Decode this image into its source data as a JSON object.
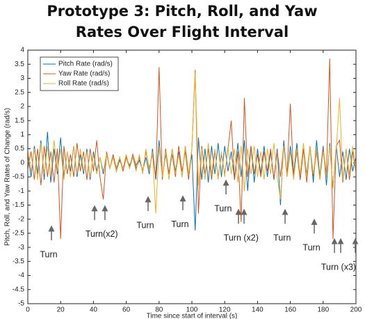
{
  "chart_data": {
    "type": "line",
    "title": [
      "Prototype 3: Pitch, Roll, and Yaw",
      "Rates Over Flight Interval"
    ],
    "xlabel": "Time since start of interval (s)",
    "ylabel": "Pitch, Roll, and Yaw Rates of Change (rad/s)",
    "xlim": [
      0,
      200
    ],
    "ylim": [
      -5,
      4
    ],
    "xticks": [
      0,
      20,
      40,
      60,
      80,
      100,
      120,
      140,
      160,
      180,
      200
    ],
    "yticks": [
      -5,
      -4.5,
      -4,
      -3.5,
      -3,
      -2.5,
      -2,
      -1.5,
      -1,
      -0.5,
      0,
      0.5,
      1,
      1.5,
      2,
      2.5,
      3,
      3.5,
      4
    ],
    "legend": "upper left",
    "x": [
      0,
      2,
      4,
      6,
      8,
      10,
      12,
      14,
      16,
      18,
      20,
      22,
      24,
      26,
      28,
      30,
      32,
      34,
      36,
      38,
      40,
      42,
      44,
      46,
      48,
      50,
      52,
      54,
      56,
      58,
      60,
      62,
      64,
      66,
      68,
      70,
      72,
      74,
      76,
      78,
      80,
      82,
      84,
      86,
      88,
      90,
      92,
      94,
      96,
      98,
      100,
      102,
      104,
      106,
      108,
      110,
      112,
      114,
      116,
      118,
      120,
      122,
      124,
      126,
      128,
      130,
      132,
      134,
      136,
      138,
      140,
      142,
      144,
      146,
      148,
      150,
      152,
      154,
      156,
      158,
      160,
      162,
      164,
      166,
      168,
      170,
      172,
      174,
      176,
      178,
      180,
      182,
      184,
      186,
      188,
      190,
      192,
      194,
      196,
      198,
      200
    ],
    "series": [
      {
        "name": "Pitch Rate (rad/s)",
        "color": "#0072bd",
        "values": [
          0.3,
          -0.5,
          0.6,
          -0.4,
          0.8,
          -0.6,
          1.1,
          -0.7,
          0.5,
          -0.4,
          0.9,
          -0.5,
          0.4,
          -0.3,
          0.6,
          -0.5,
          0.3,
          -0.4,
          0.5,
          -0.6,
          0.4,
          -0.3,
          0.2,
          -0.4,
          0.3,
          -0.2,
          0.2,
          -0.3,
          0.1,
          -0.2,
          0.2,
          -0.1,
          0.2,
          -0.2,
          0.1,
          -0.3,
          0.2,
          -0.4,
          0.5,
          -0.6,
          0.8,
          -0.5,
          0.3,
          -0.4,
          0.5,
          -0.3,
          0.4,
          -0.5,
          0.6,
          -0.4,
          0.3,
          -2.4,
          0.9,
          -0.6,
          0.5,
          -0.7,
          0.6,
          -0.4,
          0.7,
          -0.5,
          0.6,
          -0.3,
          0.4,
          -0.6,
          0.7,
          -0.5,
          0.8,
          -1.0,
          0.6,
          -0.7,
          0.5,
          -0.4,
          0.6,
          -0.5,
          0.4,
          -0.6,
          0.5,
          -1.5,
          0.8,
          -0.5,
          0.6,
          -0.4,
          0.7,
          -0.6,
          0.5,
          -0.4,
          0.6,
          -0.7,
          0.8,
          -0.5,
          0.6,
          -0.8,
          0.7,
          -0.9,
          0.6,
          -0.5,
          0.4,
          -0.6,
          0.5,
          -0.3,
          0.2
        ]
      },
      {
        "name": "Yaw Rate (rad/s)",
        "color": "#d95319",
        "values": [
          -0.2,
          0.4,
          -0.6,
          0.5,
          -0.8,
          0.6,
          -0.5,
          0.4,
          -0.7,
          0.5,
          -2.7,
          0.6,
          -0.4,
          0.3,
          -0.5,
          0.7,
          -0.3,
          0.4,
          -0.6,
          0.5,
          -0.3,
          0.8,
          -0.5,
          -1.3,
          0.4,
          -0.2,
          0.3,
          -0.2,
          0.2,
          -0.3,
          0.2,
          -0.2,
          0.3,
          -0.1,
          0.2,
          -0.3,
          0.4,
          -0.2,
          0.3,
          -0.5,
          3.4,
          -0.6,
          0.5,
          -0.4,
          0.3,
          -0.5,
          0.6,
          -0.3,
          0.4,
          -0.6,
          0.5,
          3.3,
          -1.8,
          0.6,
          -0.4,
          0.5,
          -0.6,
          0.4,
          -0.5,
          0.3,
          -0.4,
          0.5,
          1.5,
          -0.6,
          0.4,
          -2.1,
          2.3,
          -0.5,
          0.6,
          -0.4,
          0.3,
          -0.5,
          0.4,
          -0.3,
          0.5,
          -0.6,
          0.4,
          -0.5,
          0.6,
          -0.4,
          2.1,
          -0.5,
          0.4,
          -0.6,
          0.5,
          -0.7,
          0.6,
          -0.5,
          0.4,
          -0.6,
          0.5,
          -0.4,
          3.7,
          -2.7,
          0.6,
          0.8,
          -0.7,
          0.5,
          -0.6,
          0.4,
          -0.3
        ]
      },
      {
        "name": "Roll Rate (rad/s)",
        "color": "#edb120",
        "values": [
          0.4,
          -0.3,
          0.5,
          -0.6,
          0.7,
          -0.4,
          0.6,
          -0.5,
          0.8,
          -0.3,
          0.5,
          -0.6,
          0.4,
          -0.5,
          0.6,
          -0.4,
          0.5,
          -0.3,
          0.4,
          -0.5,
          0.3,
          -0.4,
          0.2,
          -0.3,
          0.3,
          -0.2,
          0.2,
          -0.3,
          0.2,
          -0.2,
          0.3,
          -0.2,
          0.2,
          -0.3,
          0.3,
          -0.4,
          0.5,
          -0.3,
          0.4,
          -1.8,
          0.6,
          -0.5,
          0.4,
          -0.6,
          0.5,
          -0.4,
          0.3,
          -0.5,
          0.6,
          -0.4,
          0.5,
          3.2,
          -0.8,
          0.5,
          -0.6,
          0.7,
          -0.4,
          0.5,
          -0.6,
          0.4,
          -0.5,
          0.6,
          -0.4,
          0.5,
          -0.7,
          0.6,
          -1.0,
          0.5,
          -0.4,
          0.6,
          -0.5,
          0.4,
          -0.6,
          0.5,
          -0.4,
          0.7,
          -0.5,
          -1.3,
          0.6,
          -0.5,
          0.4,
          -0.6,
          0.5,
          -0.4,
          0.7,
          -0.5,
          0.6,
          -0.4,
          0.5,
          -0.6,
          0.4,
          -0.5,
          0.6,
          -0.9,
          0.5,
          2.3,
          -0.6,
          0.5,
          -0.4,
          0.6,
          -0.3
        ]
      }
    ],
    "annotations": [
      {
        "text": "Turn",
        "x": 12.7,
        "y": -3.27,
        "arrows": [
          14.4
        ]
      },
      {
        "text": "Turn(x2)",
        "x": 45,
        "y": -2.55,
        "arrows": [
          40.7,
          47
        ]
      },
      {
        "text": "Turn",
        "x": 71.6,
        "y": -2.23,
        "arrows": [
          73.3
        ]
      },
      {
        "text": "Turn",
        "x": 92.8,
        "y": -2.2,
        "arrows": [
          94.5
        ]
      },
      {
        "text": "Turn",
        "x": 119,
        "y": -1.64,
        "arrows": [
          120.8
        ]
      },
      {
        "text": "Turn (x2)",
        "x": 130,
        "y": -2.68,
        "arrows": [
          128.4,
          131.8
        ]
      },
      {
        "text": "Turn",
        "x": 155,
        "y": -2.68,
        "arrows": [
          156.8
        ]
      },
      {
        "text": "Turn",
        "x": 172.9,
        "y": -3.03,
        "arrows": [
          174.6
        ]
      },
      {
        "text": "Turn (x3)",
        "x": 189.4,
        "y": -3.72,
        "arrows": [
          186.9,
          190.7,
          199.6
        ]
      }
    ]
  }
}
